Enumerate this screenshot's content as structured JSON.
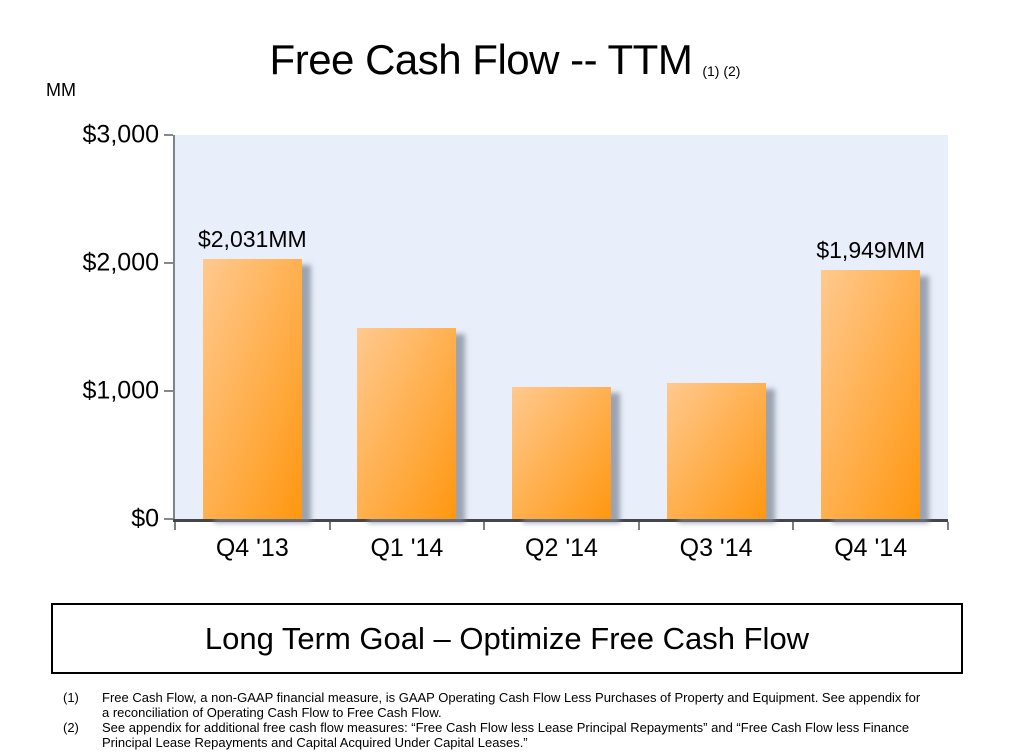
{
  "slide": {
    "unit_label": "MM",
    "title": "Free Cash Flow -- TTM",
    "title_footnote_refs": "(1) (2)",
    "goal_banner": "Long Term Goal – Optimize Free Cash Flow",
    "footnotes": [
      {
        "marker": "(1)",
        "text": "Free Cash Flow, a non-GAAP financial measure, is GAAP Operating Cash Flow Less Purchases of Property and Equipment. See appendix for a reconciliation of Operating Cash Flow to Free Cash Flow."
      },
      {
        "marker": "(2)",
        "text": "See appendix for additional free cash flow measures:  “Free Cash Flow less Lease Principal Repayments” and “Free Cash Flow less Finance Principal Lease Repayments and Capital Acquired Under Capital Leases.”"
      }
    ]
  },
  "chart_data": {
    "type": "bar",
    "title": "Free Cash Flow -- TTM",
    "unit_label": "MM",
    "categories": [
      "Q4 '13",
      "Q1 '14",
      "Q2 '14",
      "Q3 '14",
      "Q4 '14"
    ],
    "values": [
      2031,
      1490,
      1035,
      1065,
      1949
    ],
    "value_labels": [
      "$2,031MM",
      "",
      "",
      "",
      "$1,949MM"
    ],
    "ylim": [
      0,
      3000
    ],
    "yticks": [
      0,
      1000,
      2000,
      3000
    ],
    "ytick_labels": [
      "$0",
      "$1,000",
      "$2,000",
      "$3,000"
    ],
    "xlabel": "",
    "ylabel": "MM",
    "grid": false,
    "legend": null,
    "plot_background": "#E9EFFA",
    "bar_color_light": "#FFC98F",
    "bar_color_dark": "#FF9710",
    "bar_shadow_color": "#7D8596"
  }
}
